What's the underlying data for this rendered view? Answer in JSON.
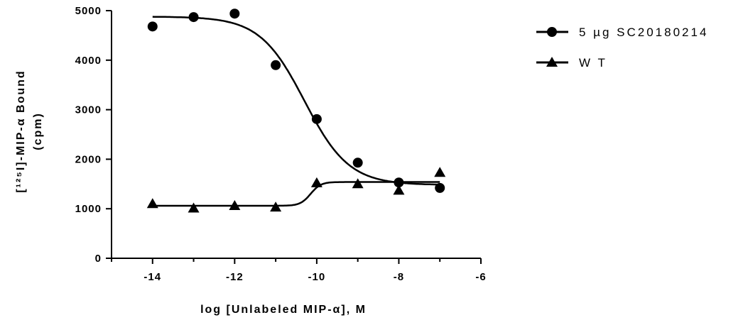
{
  "chart_data": {
    "type": "scatter",
    "xlabel": "log [Unlabeled MIP-α], M",
    "ylabel_line1": "[¹²⁵I]-MIP-α Bound",
    "ylabel_line2": "(cpm)",
    "xlim": [
      -15,
      -6
    ],
    "ylim": [
      0,
      5000
    ],
    "x_ticks": [
      -14,
      -12,
      -10,
      -8,
      -6
    ],
    "y_ticks": [
      0,
      1000,
      2000,
      3000,
      4000,
      5000
    ],
    "legend_position": "top-right",
    "grid": false,
    "series": [
      {
        "name": "5 µg SC20180214",
        "marker": "circle",
        "color": "#000000",
        "x": [
          -14,
          -13,
          -12,
          -11,
          -10,
          -9,
          -8,
          -7
        ],
        "y": [
          4680,
          4870,
          4940,
          3900,
          2810,
          1930,
          1530,
          1420
        ],
        "fit": {
          "model": "sigmoid",
          "top": 4880,
          "bottom": 1480,
          "logEC50": -10.3,
          "hill": 0.8,
          "x_range": [
            -14,
            -7
          ]
        }
      },
      {
        "name": "W T",
        "marker": "triangle",
        "color": "#000000",
        "x": [
          -14,
          -13,
          -12,
          -11,
          -10,
          -9,
          -8,
          -7
        ],
        "y": [
          1100,
          1010,
          1060,
          1030,
          1520,
          1500,
          1370,
          1730
        ],
        "fit": {
          "model": "sigmoid",
          "top": 1060,
          "bottom": 1540,
          "logEC50": -10.15,
          "hill": 3.5,
          "x_range": [
            -14,
            -7
          ]
        }
      }
    ]
  }
}
